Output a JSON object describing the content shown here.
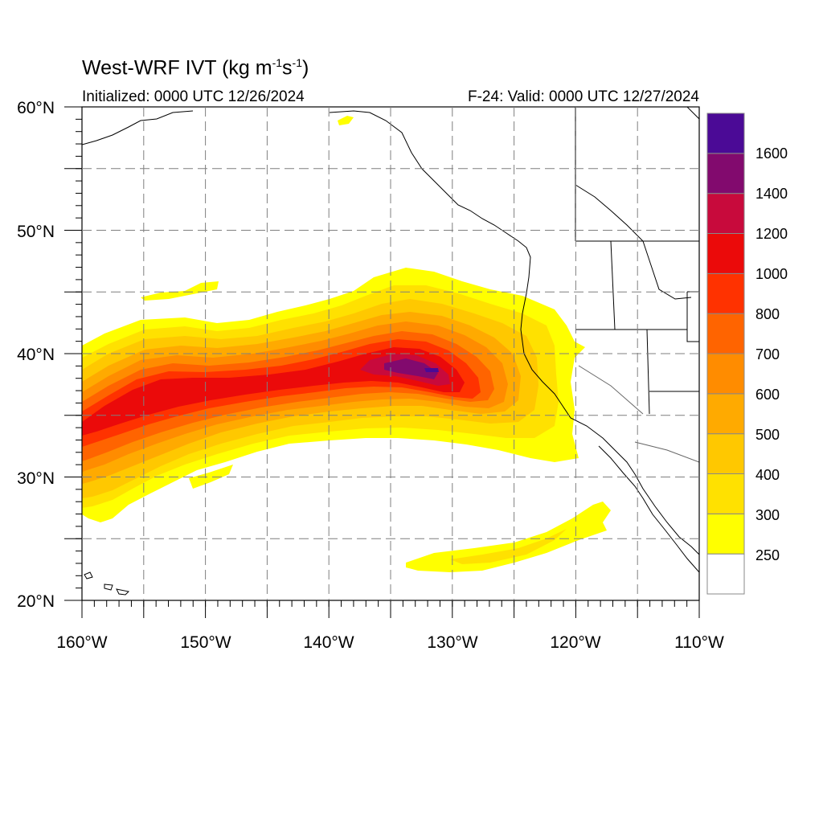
{
  "title": {
    "prefix": "West-WRF IVT (kg m",
    "exp1": "-1",
    "mid": "s",
    "exp2": "-1",
    "suffix": ")"
  },
  "subtitle_left": "Initialized: 0000 UTC 12/26/2024",
  "subtitle_right": "F-24: Valid: 0000 UTC 12/27/2024",
  "lon_labels": [
    "160°W",
    "150°W",
    "140°W",
    "130°W",
    "120°W",
    "110°W"
  ],
  "lat_labels": [
    "60°N",
    "50°N",
    "40°N",
    "30°N",
    "20°N"
  ],
  "colorbar": {
    "labels": [
      "250",
      "300",
      "400",
      "500",
      "600",
      "700",
      "800",
      "1000",
      "1200",
      "1400",
      "1600"
    ],
    "colors": [
      "#ffffff",
      "#ffff00",
      "#ffe100",
      "#ffc800",
      "#ffaa00",
      "#ff8c00",
      "#ff6400",
      "#ff3200",
      "#eb0a0a",
      "#c80a3c",
      "#820a6e",
      "#4b0a96"
    ]
  },
  "colors": {
    "land_line": "#000000",
    "grid": "#7f7f7f",
    "state_border": "#666666"
  }
}
